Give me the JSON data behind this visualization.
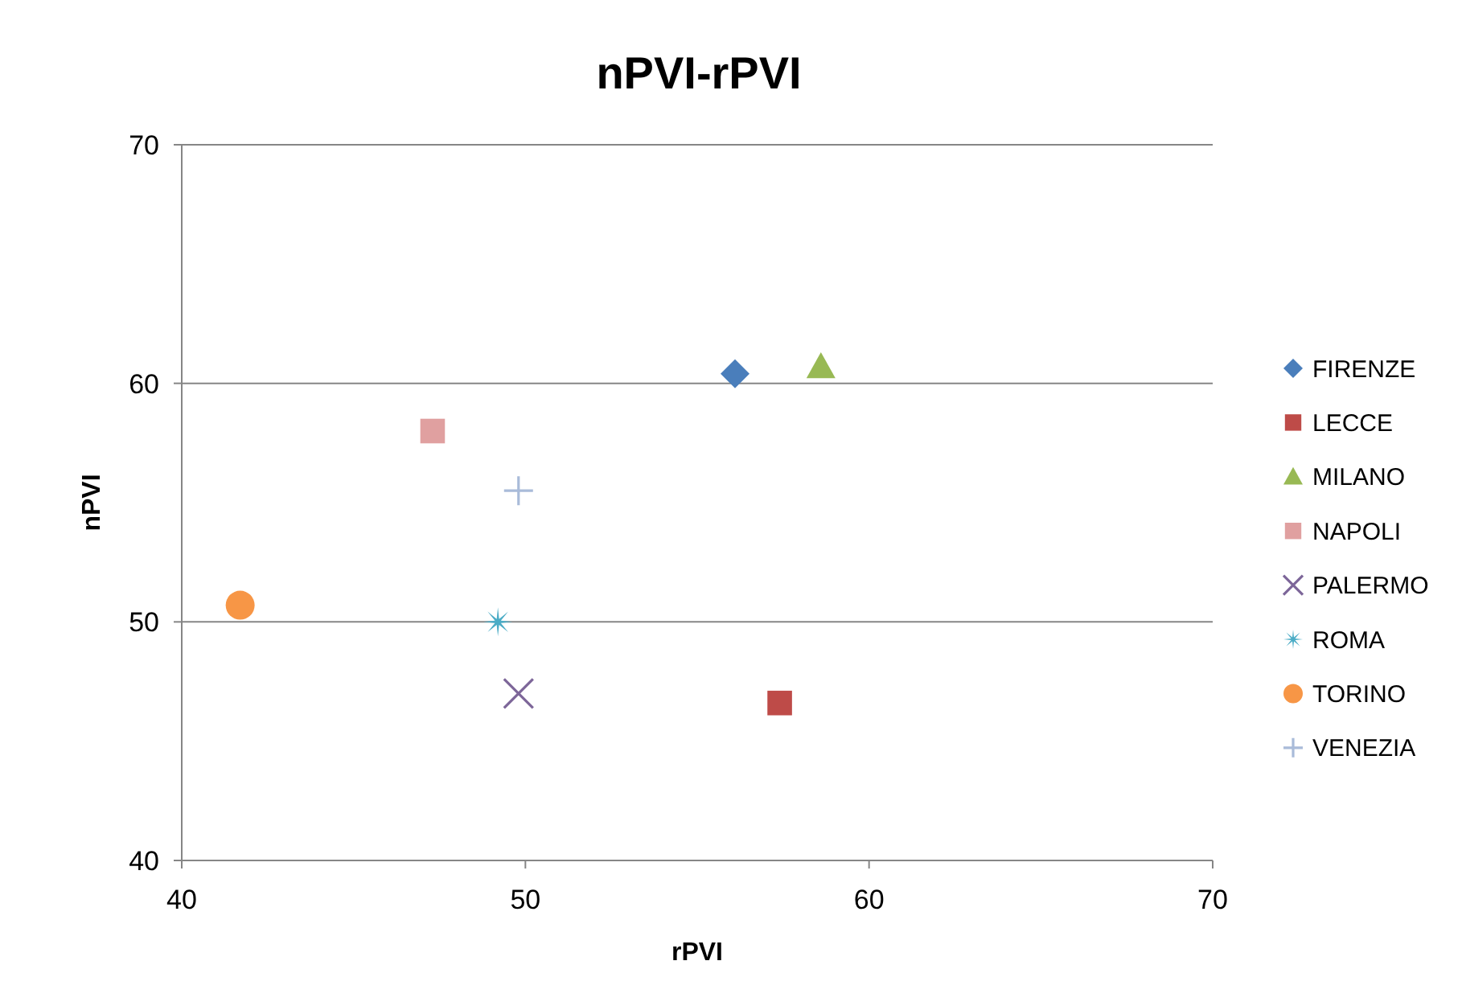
{
  "chart_data": {
    "type": "scatter",
    "title": "nPVI-rPVI",
    "xlabel": "rPVI",
    "ylabel": "nPVI",
    "xlim": [
      40,
      70
    ],
    "ylim": [
      40,
      70
    ],
    "xticks": [
      40,
      50,
      60,
      70
    ],
    "yticks": [
      40,
      50,
      60,
      70
    ],
    "grid": "y",
    "legend": "right",
    "series": [
      {
        "name": "FIRENZE",
        "color": "#4a7ebb",
        "marker": "diamond",
        "x": [
          56.1
        ],
        "values": [
          60.4
        ]
      },
      {
        "name": "LECCE",
        "color": "#be4b48",
        "marker": "square",
        "x": [
          57.4
        ],
        "values": [
          46.6
        ]
      },
      {
        "name": "MILANO",
        "color": "#98b954",
        "marker": "triangle",
        "x": [
          58.6
        ],
        "values": [
          60.7
        ]
      },
      {
        "name": "NAPOLI",
        "color": "#e0a0a0",
        "marker": "square",
        "x": [
          47.3
        ],
        "values": [
          58.0
        ]
      },
      {
        "name": "PALERMO",
        "color": "#7d6699",
        "marker": "cross",
        "x": [
          49.8
        ],
        "values": [
          47.0
        ]
      },
      {
        "name": "ROMA",
        "color": "#4bacc6",
        "marker": "star",
        "x": [
          49.2
        ],
        "values": [
          50.0
        ]
      },
      {
        "name": "TORINO",
        "color": "#f79646",
        "marker": "circle",
        "x": [
          41.7
        ],
        "values": [
          50.7
        ]
      },
      {
        "name": "VENEZIA",
        "color": "#a9bbd9",
        "marker": "plus",
        "x": [
          49.8
        ],
        "values": [
          55.5
        ]
      }
    ]
  }
}
